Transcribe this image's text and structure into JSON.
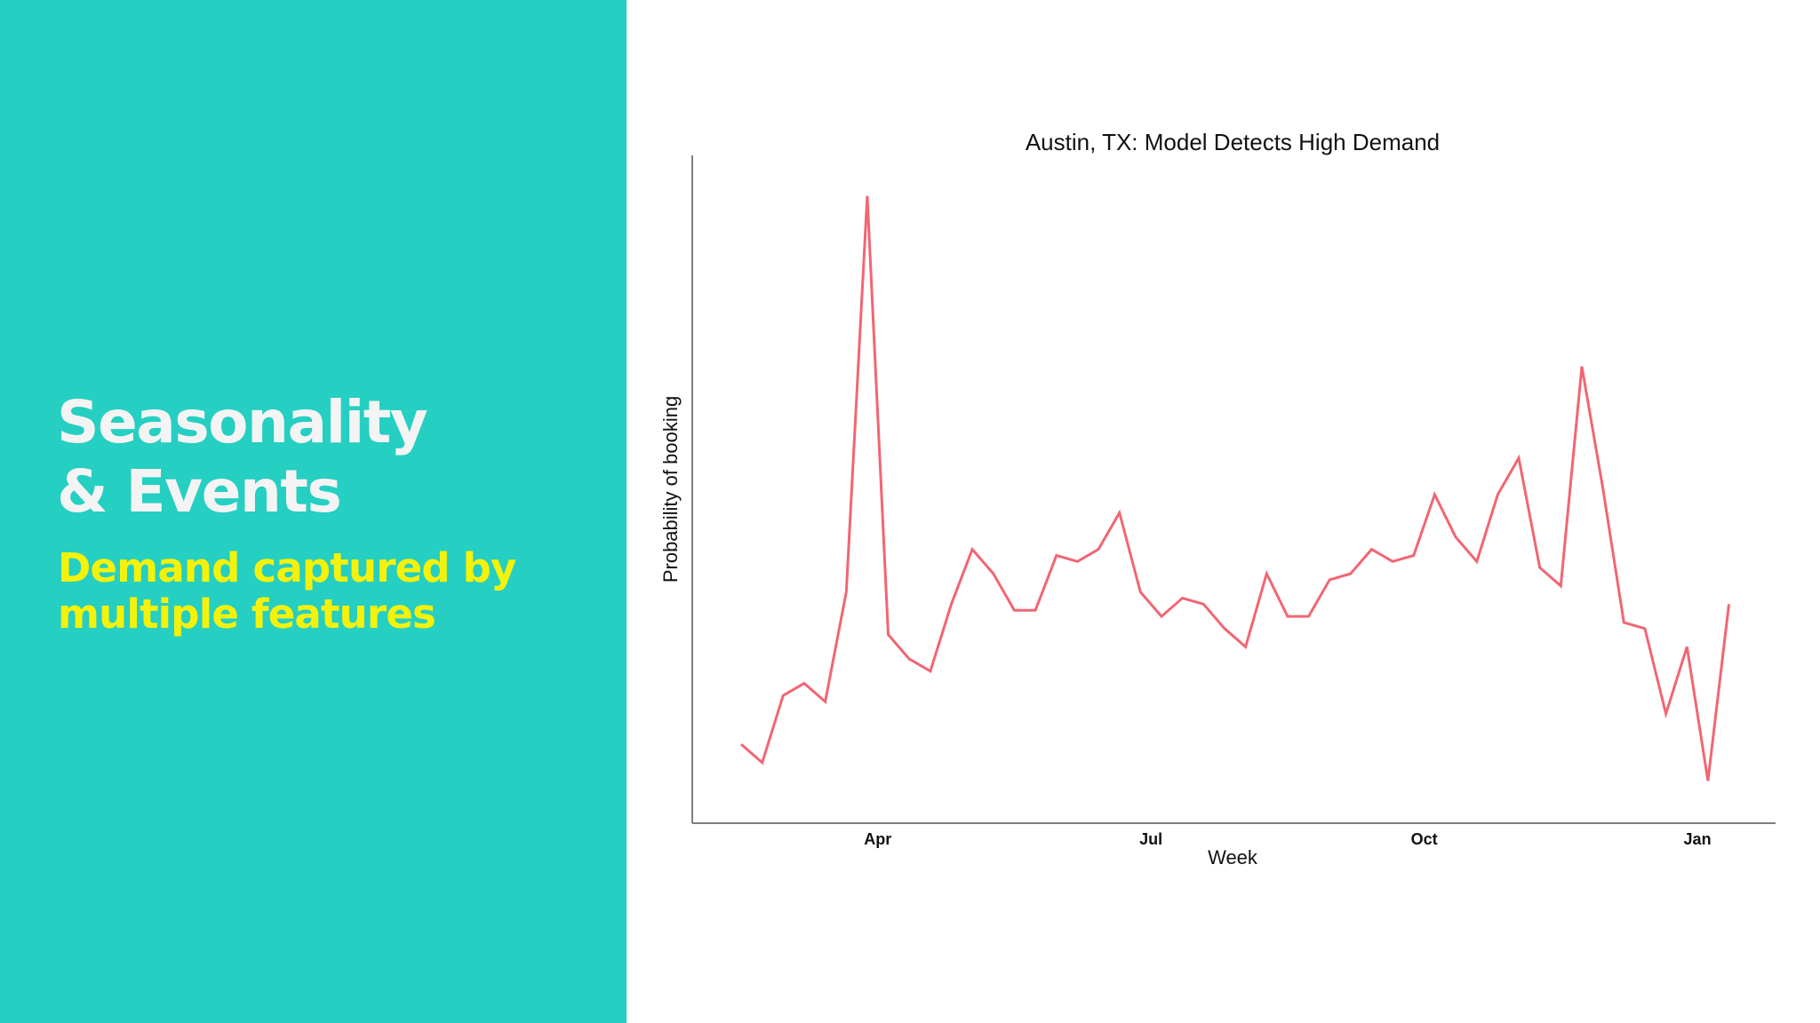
{
  "slide": {
    "heading_lines": [
      "Seasonality",
      "& Events"
    ],
    "subheading_lines": [
      "Demand captured by",
      "multiple features"
    ],
    "panel_color": "#25cfc2",
    "heading_color": "#f4f4f4",
    "subheading_color": "#f4f20a"
  },
  "chart_data": {
    "type": "line",
    "title": "Austin, TX: Model Detects High Demand",
    "xlabel": "Week",
    "ylabel": "Probability of booking",
    "x_ticks": [
      "Apr",
      "Jul",
      "Oct",
      "Jan"
    ],
    "x_axis": "weekly, Jan through Dec",
    "y_ticks_shown": false,
    "grid": false,
    "series": [
      {
        "color": "#f16672",
        "values": [
          0.08,
          0.05,
          0.16,
          0.18,
          0.15,
          0.33,
          0.98,
          0.26,
          0.22,
          0.2,
          0.31,
          0.4,
          0.36,
          0.3,
          0.3,
          0.39,
          0.38,
          0.4,
          0.46,
          0.33,
          0.29,
          0.32,
          0.31,
          0.27,
          0.24,
          0.36,
          0.29,
          0.29,
          0.35,
          0.36,
          0.4,
          0.38,
          0.39,
          0.49,
          0.42,
          0.38,
          0.49,
          0.55,
          0.37,
          0.34,
          0.7,
          0.5,
          0.28,
          0.27,
          0.13,
          0.24,
          0.02,
          0.31
        ]
      }
    ]
  }
}
